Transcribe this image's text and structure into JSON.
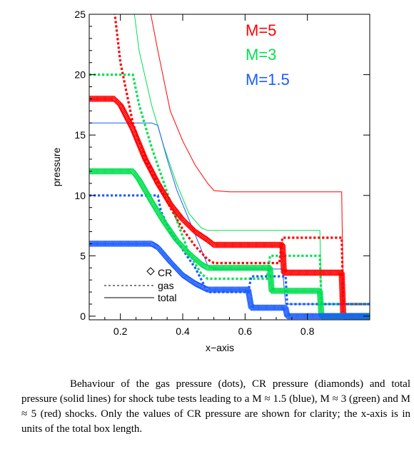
{
  "chart_data": {
    "type": "line",
    "title": "",
    "xlabel": "x−axis",
    "ylabel": "pressure",
    "xlim": [
      0.1,
      1.0
    ],
    "ylim": [
      -0.3,
      25
    ],
    "x_ticks": [
      "0.2",
      "0.4",
      "0.6",
      "0.8"
    ],
    "y_ticks": [
      "0",
      "5",
      "10",
      "15",
      "20",
      "25"
    ],
    "mach_labels": [
      {
        "text": "M=5",
        "color": "#ff0000"
      },
      {
        "text": "M=3",
        "color": "#00e050"
      },
      {
        "text": "M=1.5",
        "color": "#1a5cff"
      }
    ],
    "legend": {
      "placement": "bottom-left",
      "entries": [
        {
          "label": "CR",
          "style": "diamond"
        },
        {
          "label": "gas",
          "style": "dotted"
        },
        {
          "label": "total",
          "style": "solid"
        }
      ]
    },
    "series": [
      {
        "mach": "M=5",
        "quantity": "total",
        "style": "solid",
        "color": "#ff0000",
        "points": [
          [
            0.29,
            26
          ],
          [
            0.32,
            22
          ],
          [
            0.36,
            17
          ],
          [
            0.4,
            14.5
          ],
          [
            0.44,
            12.5
          ],
          [
            0.48,
            11
          ],
          [
            0.5,
            10.4
          ],
          [
            0.55,
            10.3
          ],
          [
            0.7,
            10.3
          ],
          [
            0.91,
            10.3
          ],
          [
            0.915,
            1.0
          ],
          [
            1.0,
            1.0
          ]
        ]
      },
      {
        "mach": "M=5",
        "quantity": "gas",
        "style": "dotted",
        "color": "#ff0000",
        "points": [
          [
            0.18,
            25.5
          ],
          [
            0.2,
            21
          ],
          [
            0.24,
            16
          ],
          [
            0.28,
            13
          ],
          [
            0.32,
            11
          ],
          [
            0.36,
            9
          ],
          [
            0.4,
            7.2
          ],
          [
            0.44,
            5.8
          ],
          [
            0.48,
            4.7
          ],
          [
            0.5,
            4.4
          ],
          [
            0.71,
            4.4
          ],
          [
            0.72,
            6.5
          ],
          [
            0.91,
            6.5
          ],
          [
            0.915,
            1.0
          ],
          [
            1.0,
            1.0
          ]
        ]
      },
      {
        "mach": "M=5",
        "quantity": "CR",
        "style": "diamond",
        "color": "#ff0000",
        "points": [
          [
            0.1,
            18
          ],
          [
            0.18,
            18
          ],
          [
            0.2,
            17.5
          ],
          [
            0.24,
            15.5
          ],
          [
            0.28,
            13
          ],
          [
            0.32,
            11
          ],
          [
            0.36,
            9.3
          ],
          [
            0.4,
            8
          ],
          [
            0.44,
            7
          ],
          [
            0.48,
            6.3
          ],
          [
            0.5,
            5.9
          ],
          [
            0.72,
            5.9
          ],
          [
            0.725,
            3.6
          ],
          [
            0.91,
            3.6
          ],
          [
            0.915,
            0
          ],
          [
            1.0,
            0
          ]
        ]
      },
      {
        "mach": "M=3",
        "quantity": "total",
        "style": "solid",
        "color": "#00e050",
        "points": [
          [
            0.24,
            26
          ],
          [
            0.26,
            22
          ],
          [
            0.3,
            17.5
          ],
          [
            0.34,
            14
          ],
          [
            0.38,
            11
          ],
          [
            0.42,
            8.5
          ],
          [
            0.46,
            7.3
          ],
          [
            0.48,
            7.1
          ],
          [
            0.84,
            7.1
          ],
          [
            0.845,
            1.0
          ],
          [
            1.0,
            1.0
          ]
        ]
      },
      {
        "mach": "M=3",
        "quantity": "gas",
        "style": "dotted",
        "color": "#00e050",
        "points": [
          [
            0.1,
            20
          ],
          [
            0.24,
            20
          ],
          [
            0.26,
            17.5
          ],
          [
            0.3,
            14
          ],
          [
            0.34,
            11
          ],
          [
            0.38,
            8
          ],
          [
            0.42,
            5.2
          ],
          [
            0.46,
            3.5
          ],
          [
            0.48,
            3.1
          ],
          [
            0.67,
            3.1
          ],
          [
            0.68,
            5.0
          ],
          [
            0.84,
            5.0
          ],
          [
            0.845,
            1.0
          ],
          [
            1.0,
            1.0
          ]
        ]
      },
      {
        "mach": "M=3",
        "quantity": "CR",
        "style": "diamond",
        "color": "#00e050",
        "points": [
          [
            0.1,
            12
          ],
          [
            0.24,
            12
          ],
          [
            0.26,
            11.3
          ],
          [
            0.3,
            9.5
          ],
          [
            0.34,
            7.8
          ],
          [
            0.38,
            6.3
          ],
          [
            0.42,
            5.2
          ],
          [
            0.46,
            4.3
          ],
          [
            0.48,
            4.0
          ],
          [
            0.68,
            4.0
          ],
          [
            0.685,
            2.1
          ],
          [
            0.84,
            2.1
          ],
          [
            0.845,
            0
          ],
          [
            1.0,
            0
          ]
        ]
      },
      {
        "mach": "M=1.5",
        "quantity": "total",
        "style": "solid",
        "color": "#1a5cff",
        "points": [
          [
            0.1,
            16
          ],
          [
            0.3,
            16
          ],
          [
            0.32,
            15.8
          ],
          [
            0.35,
            13
          ],
          [
            0.38,
            10.5
          ],
          [
            0.42,
            8
          ],
          [
            0.46,
            5.5
          ],
          [
            0.48,
            4.2
          ],
          [
            0.5,
            3.9
          ],
          [
            0.72,
            3.9
          ],
          [
            0.73,
            1.0
          ],
          [
            1.0,
            1.0
          ]
        ]
      },
      {
        "mach": "M=1.5",
        "quantity": "gas",
        "style": "dotted",
        "color": "#1a5cff",
        "points": [
          [
            0.1,
            10
          ],
          [
            0.32,
            10
          ],
          [
            0.33,
            8.7
          ],
          [
            0.36,
            7
          ],
          [
            0.4,
            5.5
          ],
          [
            0.44,
            4
          ],
          [
            0.47,
            2.5
          ],
          [
            0.48,
            2.0
          ],
          [
            0.61,
            2.0
          ],
          [
            0.62,
            3.3
          ],
          [
            0.73,
            3.3
          ],
          [
            0.735,
            1.0
          ],
          [
            1.0,
            1.0
          ]
        ]
      },
      {
        "mach": "M=1.5",
        "quantity": "CR",
        "style": "diamond",
        "color": "#1a5cff",
        "points": [
          [
            0.1,
            6
          ],
          [
            0.3,
            6
          ],
          [
            0.32,
            5.7
          ],
          [
            0.36,
            4.5
          ],
          [
            0.4,
            3.4
          ],
          [
            0.44,
            2.7
          ],
          [
            0.48,
            2.2
          ],
          [
            0.61,
            2.2
          ],
          [
            0.62,
            0.7
          ],
          [
            0.73,
            0.7
          ],
          [
            0.735,
            0
          ],
          [
            1.0,
            0
          ]
        ]
      }
    ]
  },
  "caption": "Behaviour of the gas pressure (dots), CR pressure (diamonds) and total pressure (solid lines) for shock tube tests leading to a M ≈ 1.5 (blue), M ≈ 3 (green) and M ≈ 5 (red) shocks. Only the values of CR pressure are shown for clarity; the x-axis is in units of the total box length."
}
